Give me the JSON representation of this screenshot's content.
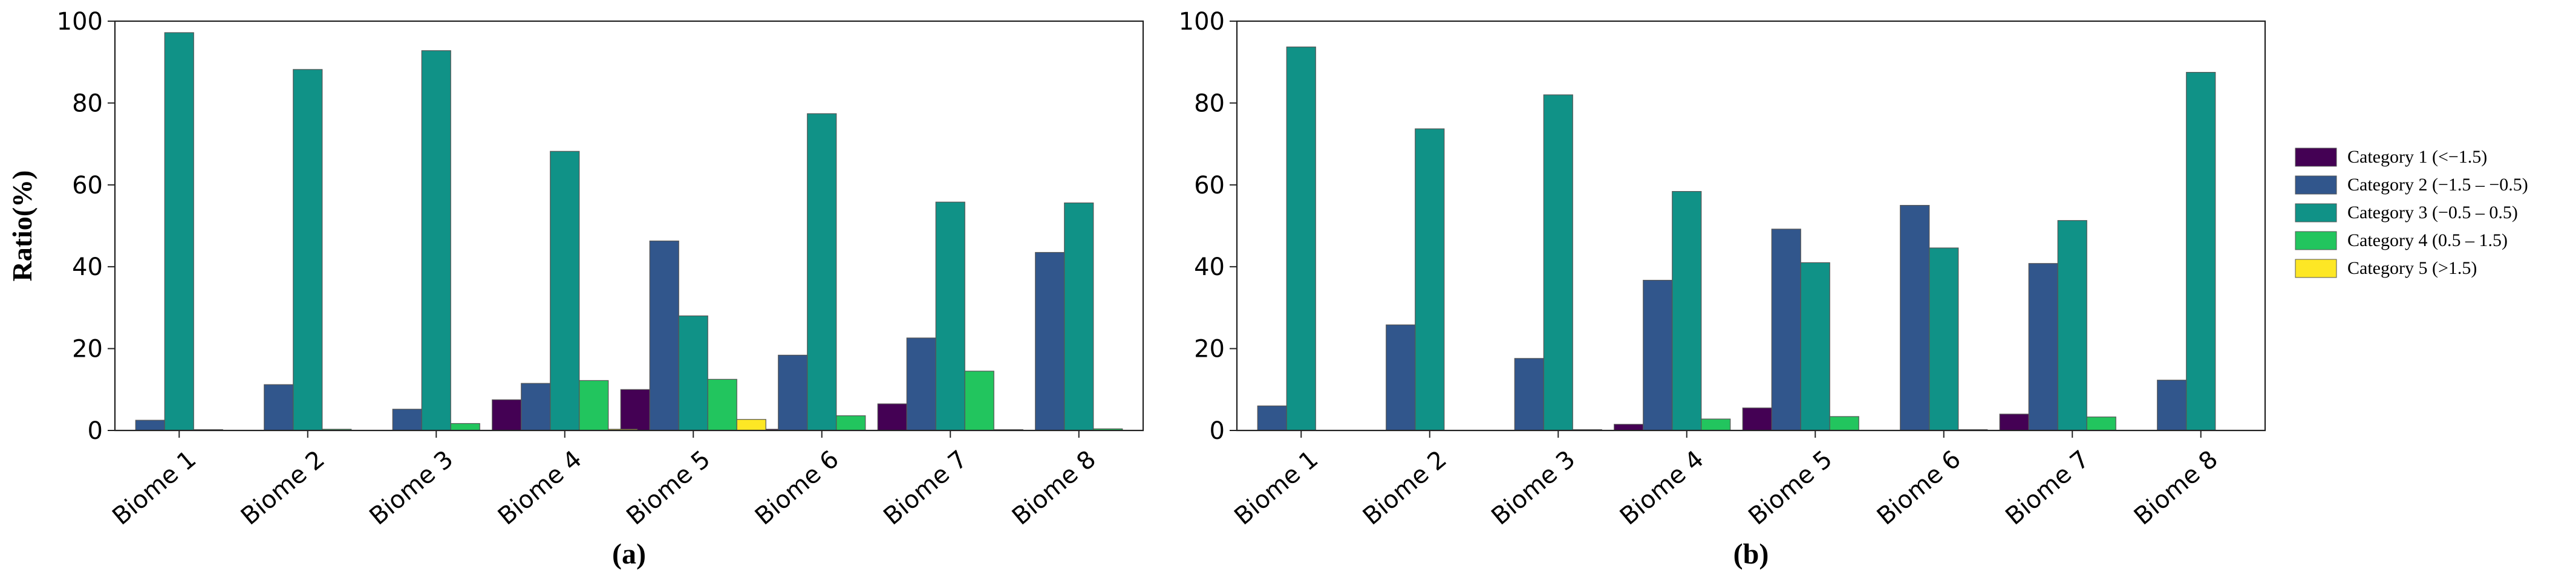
{
  "chart_data": [
    {
      "type": "bar",
      "panel_label": "(a)",
      "ylabel": "Ratio(%)",
      "ylim": [
        0,
        100
      ],
      "yticks": [
        0,
        20,
        40,
        60,
        80,
        100
      ],
      "categories": [
        "Biome 1",
        "Biome 2",
        "Biome 3",
        "Biome 4",
        "Biome 5",
        "Biome 6",
        "Biome 7",
        "Biome 8"
      ],
      "series": [
        {
          "name": "Category 1 (<−1.5)",
          "color": "#440154",
          "values": [
            0,
            0,
            0,
            7.5,
            10.0,
            0.3,
            6.5,
            0
          ]
        },
        {
          "name": "Category 2 (−1.5 – −0.5)",
          "color": "#31568c",
          "values": [
            2.5,
            11.2,
            5.2,
            11.5,
            46.3,
            18.4,
            22.6,
            43.5
          ]
        },
        {
          "name": "Category 3 (−0.5 – 0.5)",
          "color": "#109287",
          "values": [
            97.2,
            88.2,
            92.8,
            68.2,
            28.0,
            77.4,
            55.8,
            55.6
          ]
        },
        {
          "name": "Category 4 (0.5 – 1.5)",
          "color": "#22c55e",
          "values": [
            0.2,
            0.3,
            1.7,
            12.2,
            12.5,
            3.6,
            14.5,
            0.4
          ]
        },
        {
          "name": "Category 5 (>1.5)",
          "color": "#fde725",
          "values": [
            0,
            0,
            0,
            0.3,
            2.7,
            0,
            0.2,
            0
          ]
        }
      ]
    },
    {
      "type": "bar",
      "panel_label": "(b)",
      "ylabel": "",
      "ylim": [
        0,
        100
      ],
      "yticks": [
        0,
        20,
        40,
        60,
        80,
        100
      ],
      "categories": [
        "Biome 1",
        "Biome 2",
        "Biome 3",
        "Biome 4",
        "Biome 5",
        "Biome 6",
        "Biome 7",
        "Biome 8"
      ],
      "series": [
        {
          "name": "Category 1 (<−1.5)",
          "color": "#440154",
          "values": [
            0,
            0,
            0,
            1.5,
            5.5,
            0,
            4.0,
            0
          ]
        },
        {
          "name": "Category 2 (−1.5 – −0.5)",
          "color": "#31568c",
          "values": [
            6.0,
            25.8,
            17.6,
            36.7,
            49.2,
            55.0,
            40.8,
            12.3
          ]
        },
        {
          "name": "Category 3 (−0.5 – 0.5)",
          "color": "#109287",
          "values": [
            93.7,
            73.7,
            82.0,
            58.4,
            41.0,
            44.6,
            51.3,
            87.5
          ]
        },
        {
          "name": "Category 4 (0.5 – 1.5)",
          "color": "#22c55e",
          "values": [
            0,
            0,
            0.2,
            2.8,
            3.4,
            0.2,
            3.3,
            0
          ]
        },
        {
          "name": "Category 5 (>1.5)",
          "color": "#fde725",
          "values": [
            0,
            0,
            0,
            0,
            0,
            0,
            0,
            0
          ]
        }
      ]
    }
  ],
  "legend": {
    "placement": "right",
    "entries": [
      {
        "label": "Category 1 (<−1.5)",
        "color": "#440154"
      },
      {
        "label": "Category 2 (−1.5 – −0.5)",
        "color": "#31568c"
      },
      {
        "label": "Category 3 (−0.5 – 0.5)",
        "color": "#109287"
      },
      {
        "label": "Category 4 (0.5 – 1.5)",
        "color": "#22c55e"
      },
      {
        "label": "Category 5 (>1.5)",
        "color": "#fde725"
      }
    ]
  }
}
